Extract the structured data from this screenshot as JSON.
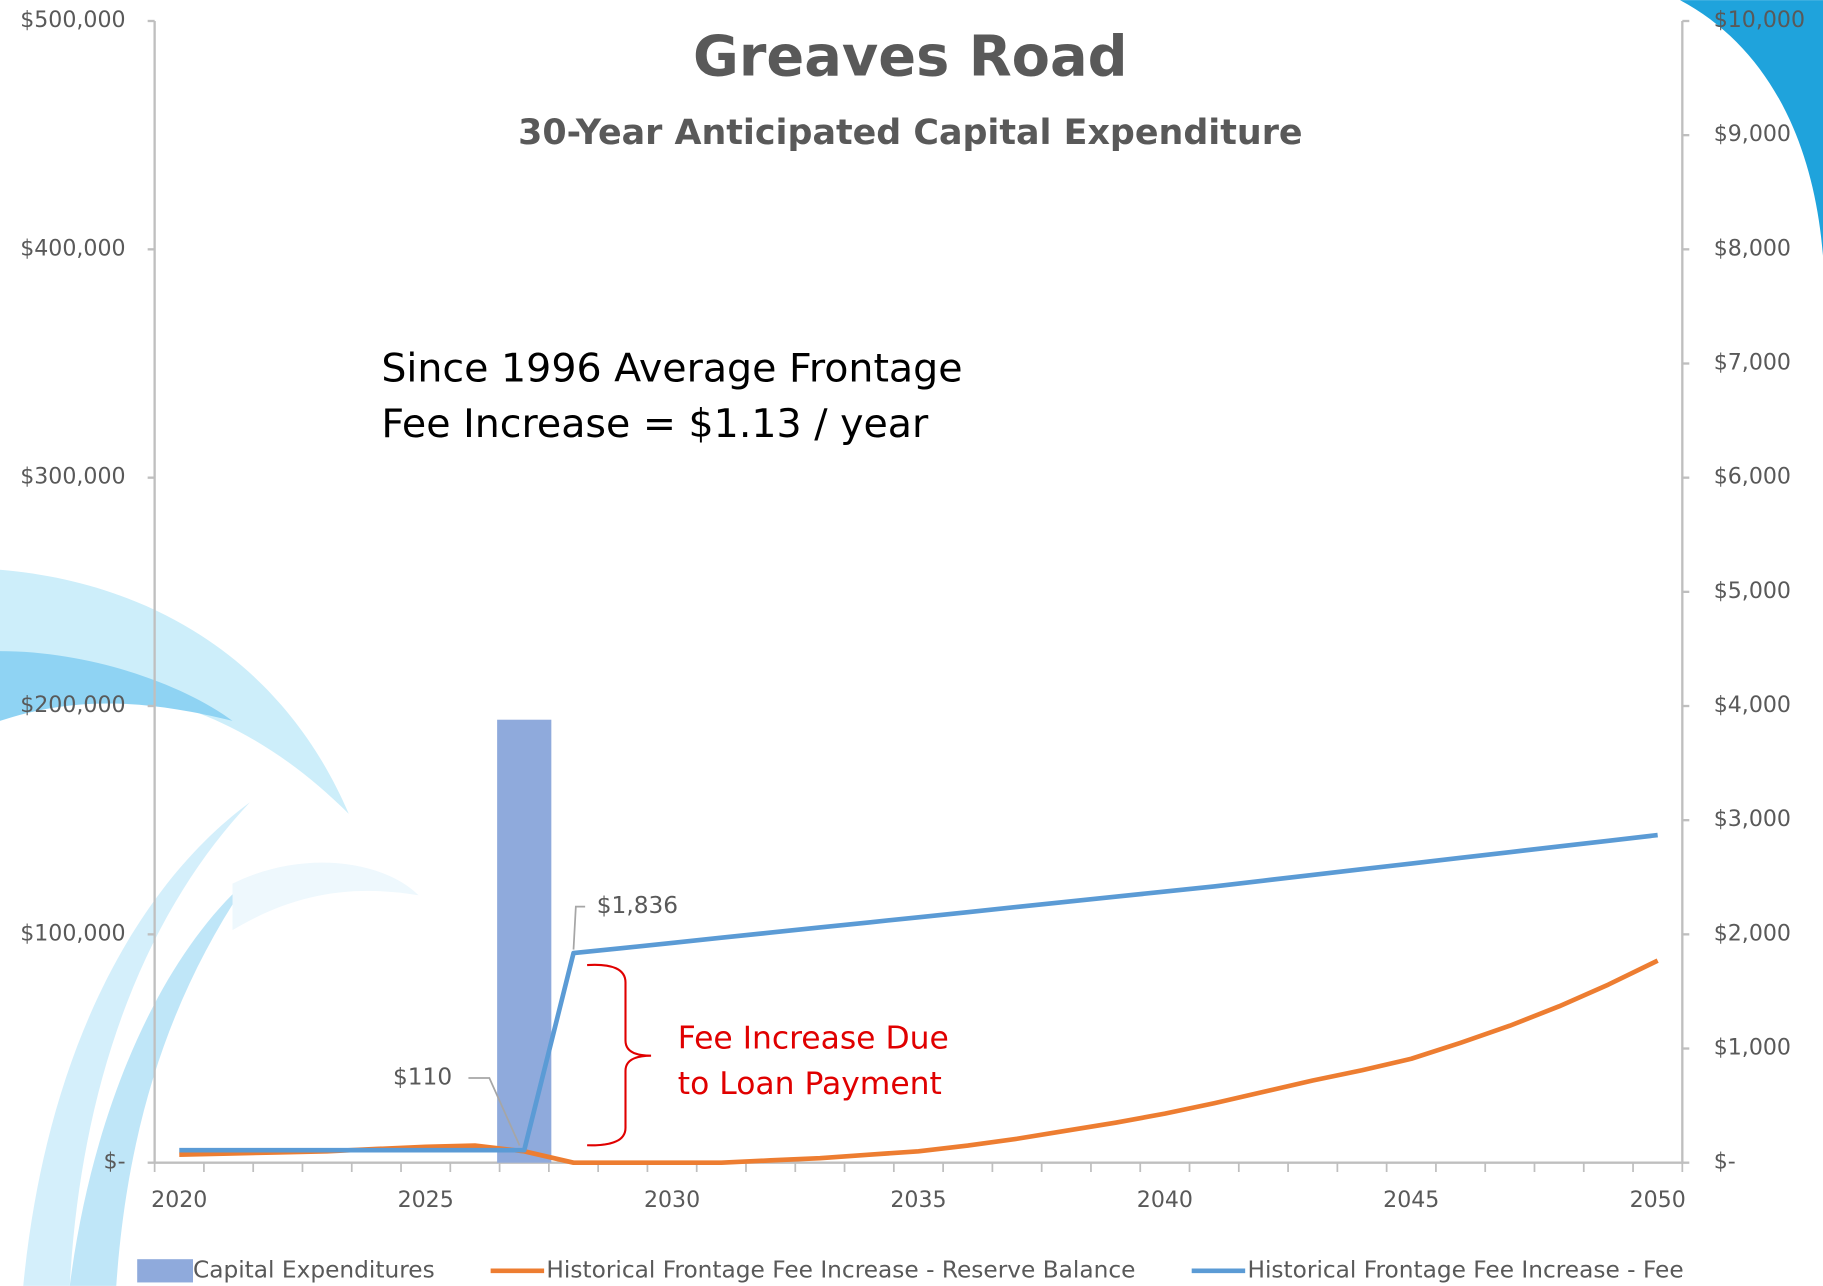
{
  "chart_data": {
    "type": "bar",
    "title": "Greaves Road",
    "subtitle": "30-Year Anticipated Capital Expenditure",
    "categories": [
      "2020",
      null,
      null,
      null,
      null,
      "2025",
      null,
      null,
      null,
      null,
      "2030",
      null,
      null,
      null,
      null,
      "2035",
      null,
      null,
      null,
      null,
      "2040",
      null,
      null,
      null,
      null,
      "2045",
      null,
      null,
      null,
      null,
      "2050"
    ],
    "ylim": [
      0,
      500000
    ],
    "yticks": [
      {
        "value": 0,
        "label": "$-"
      },
      {
        "value": 100000,
        "label": "$100,000"
      },
      {
        "value": 200000,
        "label": "$200,000"
      },
      {
        "value": 300000,
        "label": "$300,000"
      },
      {
        "value": 400000,
        "label": "$400,000"
      },
      {
        "value": 500000,
        "label": "$500,000"
      }
    ],
    "y2lim": [
      0,
      10000
    ],
    "y2ticks": [
      {
        "value": 0,
        "label": "$-"
      },
      {
        "value": 1000,
        "label": "$1,000"
      },
      {
        "value": 2000,
        "label": "$2,000"
      },
      {
        "value": 3000,
        "label": "$3,000"
      },
      {
        "value": 4000,
        "label": "$4,000"
      },
      {
        "value": 5000,
        "label": "$5,000"
      },
      {
        "value": 6000,
        "label": "$6,000"
      },
      {
        "value": 7000,
        "label": "$7,000"
      },
      {
        "value": 8000,
        "label": "$8,000"
      },
      {
        "value": 9000,
        "label": "$9,000"
      },
      {
        "value": 10000,
        "label": "$10,000"
      }
    ],
    "grid": false,
    "legend": "bottom",
    "series": [
      {
        "name": "Capital Expenditures",
        "type": "bar",
        "color": "#8faadc",
        "values": [
          0,
          0,
          0,
          0,
          0,
          0,
          0,
          194000,
          0,
          0,
          0,
          0,
          0,
          0,
          0,
          0,
          0,
          0,
          0,
          0,
          0,
          0,
          0,
          0,
          0,
          0,
          0,
          0,
          0,
          0,
          0
        ]
      },
      {
        "name": "Historical Frontage Fee Increase - Reserve Balance",
        "type": "line",
        "axis": "y2",
        "color": "#ed7d31",
        "values": [
          70,
          80,
          90,
          100,
          120,
          140,
          150,
          100,
          0,
          0,
          0,
          0,
          20,
          40,
          70,
          100,
          150,
          210,
          280,
          350,
          430,
          520,
          620,
          720,
          810,
          910,
          1050,
          1200,
          1370,
          1560,
          1770
        ]
      },
      {
        "name": "Historical Frontage Fee Increase - Fee",
        "type": "line",
        "axis": "y2",
        "color": "#5b9bd5",
        "values": [
          110,
          110,
          110,
          110,
          110,
          110,
          110,
          110,
          1836,
          1880,
          1925,
          1970,
          2015,
          2060,
          2105,
          2150,
          2195,
          2240,
          2285,
          2330,
          2375,
          2420,
          2470,
          2520,
          2570,
          2620,
          2670,
          2720,
          2770,
          2820,
          2870
        ],
        "value_labels": [
          null,
          null,
          null,
          null,
          null,
          null,
          null,
          "$110",
          "$1,836",
          null,
          null,
          null,
          null,
          null,
          null,
          null,
          null,
          null,
          null,
          null,
          null,
          null,
          null,
          null,
          null,
          null,
          null,
          null,
          null,
          null,
          null
        ]
      }
    ],
    "annotations": [
      "Since 1996 Average Frontage",
      "Fee Increase = $1.13 / year",
      "Fee Increase Due",
      "to Loan Payment"
    ]
  }
}
